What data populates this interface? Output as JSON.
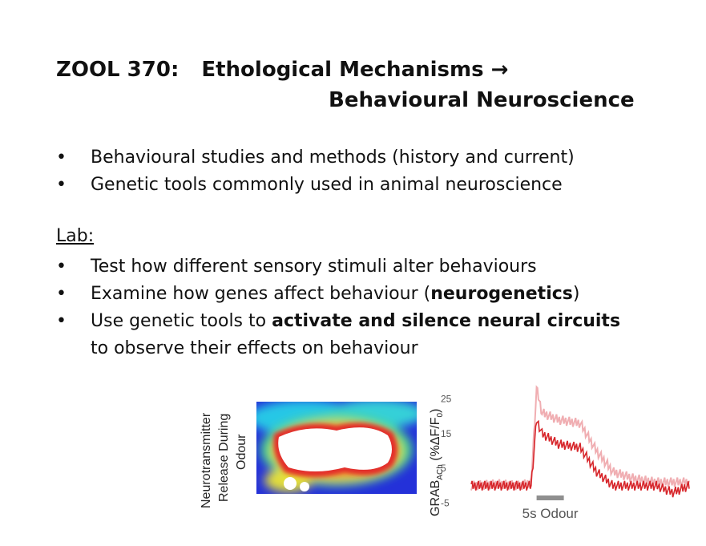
{
  "title": {
    "course": "ZOOL 370:",
    "line1": "Ethological Mechanisms",
    "arrow": "→",
    "line2": "Behavioural Neuroscience"
  },
  "topics": [
    "Behavioural studies and methods (history and current)",
    "Genetic tools commonly used in animal neuroscience"
  ],
  "lab": {
    "heading": "Lab:",
    "item1": "Test how different sensory stimuli alter behaviours",
    "item2_pre": "Examine how genes affect behaviour (",
    "item2_bold": "neurogenetics",
    "item2_post": ")",
    "item3_pre": "Use genetic tools to ",
    "item3_bold": "activate and silence neural circuits",
    "item3_post": " to observe their effects on behaviour"
  },
  "figure": {
    "image_label": [
      "Neurotransmitter",
      "Release During",
      "Odour"
    ],
    "ylabel_main": "GRAB",
    "ylabel_sub": "ACh",
    "ylabel_rest": " (%ΔF/F",
    "ylabel_sub0": "0",
    "ylabel_close": ")",
    "stim_label": "5s Odour",
    "colors": {
      "trace_dark": "#d7262b",
      "trace_light": "#f0aeb2",
      "stim_bar": "#8f8f8f"
    }
  },
  "chart_data": {
    "type": "line",
    "ylabel": "GRABACh (%ΔF/F0)",
    "yticks": [
      25,
      15,
      5,
      -5
    ],
    "ylim": [
      -7,
      30
    ],
    "xlim": [
      0,
      40
    ],
    "series": [
      {
        "x": [
          0,
          5,
          9,
          11,
          12,
          13,
          16,
          20,
          23,
          26,
          30,
          34,
          37,
          40
        ],
        "values": [
          0,
          0.5,
          0,
          1,
          28,
          21,
          19,
          18,
          10,
          4,
          2,
          1,
          1,
          1
        ]
      },
      {
        "x": [
          0,
          5,
          9,
          11,
          12,
          13,
          16,
          20,
          23,
          26,
          30,
          34,
          37,
          40
        ],
        "values": [
          0,
          0,
          0,
          0,
          19,
          15,
          12,
          11,
          4,
          0,
          0,
          0,
          -2,
          0
        ]
      }
    ],
    "stimulus": {
      "label": "5s Odour",
      "start": 12,
      "end": 17
    }
  }
}
